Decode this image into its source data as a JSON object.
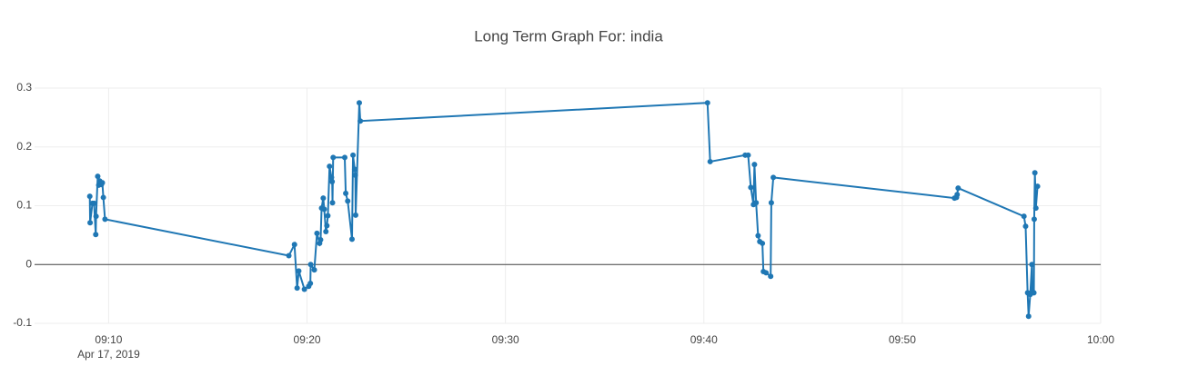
{
  "chart_data": {
    "type": "line",
    "title": "Long Term Graph For: india",
    "x": [
      "2019-04-17T09:09:03",
      "2019-04-17T09:09:04",
      "2019-04-17T09:09:11",
      "2019-04-17T09:09:16",
      "2019-04-17T09:09:21",
      "2019-04-17T09:09:22",
      "2019-04-17T09:09:27",
      "2019-04-17T09:09:30",
      "2019-04-17T09:09:33",
      "2019-04-17T09:09:38",
      "2019-04-17T09:09:41",
      "2019-04-17T09:09:44",
      "2019-04-17T09:09:49",
      "2019-04-17T09:19:05",
      "2019-04-17T09:19:22",
      "2019-04-17T09:19:30",
      "2019-04-17T09:19:35",
      "2019-04-17T09:19:52",
      "2019-04-17T09:20:05",
      "2019-04-17T09:20:10",
      "2019-04-17T09:20:11",
      "2019-04-17T09:20:22",
      "2019-04-17T09:20:30",
      "2019-04-17T09:20:38",
      "2019-04-17T09:20:41",
      "2019-04-17T09:20:44",
      "2019-04-17T09:20:49",
      "2019-04-17T09:20:52",
      "2019-04-17T09:20:57",
      "2019-04-17T09:21:00",
      "2019-04-17T09:21:03",
      "2019-04-17T09:21:08",
      "2019-04-17T09:21:14",
      "2019-04-17T09:21:16",
      "2019-04-17T09:21:17",
      "2019-04-17T09:21:19",
      "2019-04-17T09:21:54",
      "2019-04-17T09:21:57",
      "2019-04-17T09:22:03",
      "2019-04-17T09:22:16",
      "2019-04-17T09:22:19",
      "2019-04-17T09:22:24",
      "2019-04-17T09:22:26",
      "2019-04-17T09:22:27",
      "2019-04-17T09:22:38",
      "2019-04-17T09:22:41",
      "2019-04-17T09:40:11",
      "2019-04-17T09:40:19",
      "2019-04-17T09:42:05",
      "2019-04-17T09:42:14",
      "2019-04-17T09:42:22",
      "2019-04-17T09:42:30",
      "2019-04-17T09:42:33",
      "2019-04-17T09:42:38",
      "2019-04-17T09:42:44",
      "2019-04-17T09:42:49",
      "2019-04-17T09:42:57",
      "2019-04-17T09:43:00",
      "2019-04-17T09:43:08",
      "2019-04-17T09:43:22",
      "2019-04-17T09:43:24",
      "2019-04-17T09:43:30",
      "2019-04-17T09:52:38",
      "2019-04-17T09:52:44",
      "2019-04-17T09:52:46",
      "2019-04-17T09:52:49",
      "2019-04-17T09:56:08",
      "2019-04-17T09:56:13",
      "2019-04-17T09:56:19",
      "2019-04-17T09:56:22",
      "2019-04-17T09:56:27",
      "2019-04-17T09:56:32",
      "2019-04-17T09:56:33",
      "2019-04-17T09:56:38",
      "2019-04-17T09:56:39",
      "2019-04-17T09:56:41",
      "2019-04-17T09:56:44",
      "2019-04-17T09:56:49"
    ],
    "series": [
      {
        "color": "#1f77b4",
        "values": [
          0.116,
          0.071,
          0.104,
          0.104,
          0.051,
          0.082,
          0.15,
          0.135,
          0.142,
          0.136,
          0.139,
          0.114,
          0.077,
          0.015,
          0.034,
          -0.04,
          -0.011,
          -0.042,
          -0.037,
          -0.032,
          0,
          -0.009,
          0.053,
          0.036,
          0.042,
          0.096,
          0.113,
          0.094,
          0.056,
          0.066,
          0.083,
          0.167,
          0.148,
          0.141,
          0.105,
          0.182,
          0.182,
          0.121,
          0.108,
          0.043,
          0.186,
          0.162,
          0.152,
          0.084,
          0.275,
          0.244,
          0.275,
          0.175,
          0.186,
          0.186,
          0.131,
          0.102,
          0.17,
          0.105,
          0.049,
          0.039,
          0.036,
          -0.012,
          -0.014,
          -0.02,
          0.105,
          0.148,
          0.113,
          0.114,
          0.119,
          0.13,
          0.082,
          0.065,
          -0.048,
          -0.088,
          -0.051,
          0,
          -0.045,
          -0.048,
          0.077,
          0.156,
          0.096,
          0.133
        ]
      }
    ],
    "xlim": [
      "2019-04-17T09:06:16",
      "2019-04-17T10:00:00"
    ],
    "xticks": [
      {
        "value": "2019-04-17T09:10:00",
        "label": "09:10"
      },
      {
        "value": "2019-04-17T09:20:00",
        "label": "09:20"
      },
      {
        "value": "2019-04-17T09:30:00",
        "label": "09:30"
      },
      {
        "value": "2019-04-17T09:40:00",
        "label": "09:40"
      },
      {
        "value": "2019-04-17T09:50:00",
        "label": "09:50"
      },
      {
        "value": "2019-04-17T10:00:00",
        "label": "10:00"
      }
    ],
    "x_date_label": "Apr 17, 2019",
    "ylim": [
      -0.1,
      0.3
    ],
    "yticks": [
      -0.1,
      0,
      0.1,
      0.2,
      0.3
    ],
    "grid": true,
    "zeroline": true
  }
}
